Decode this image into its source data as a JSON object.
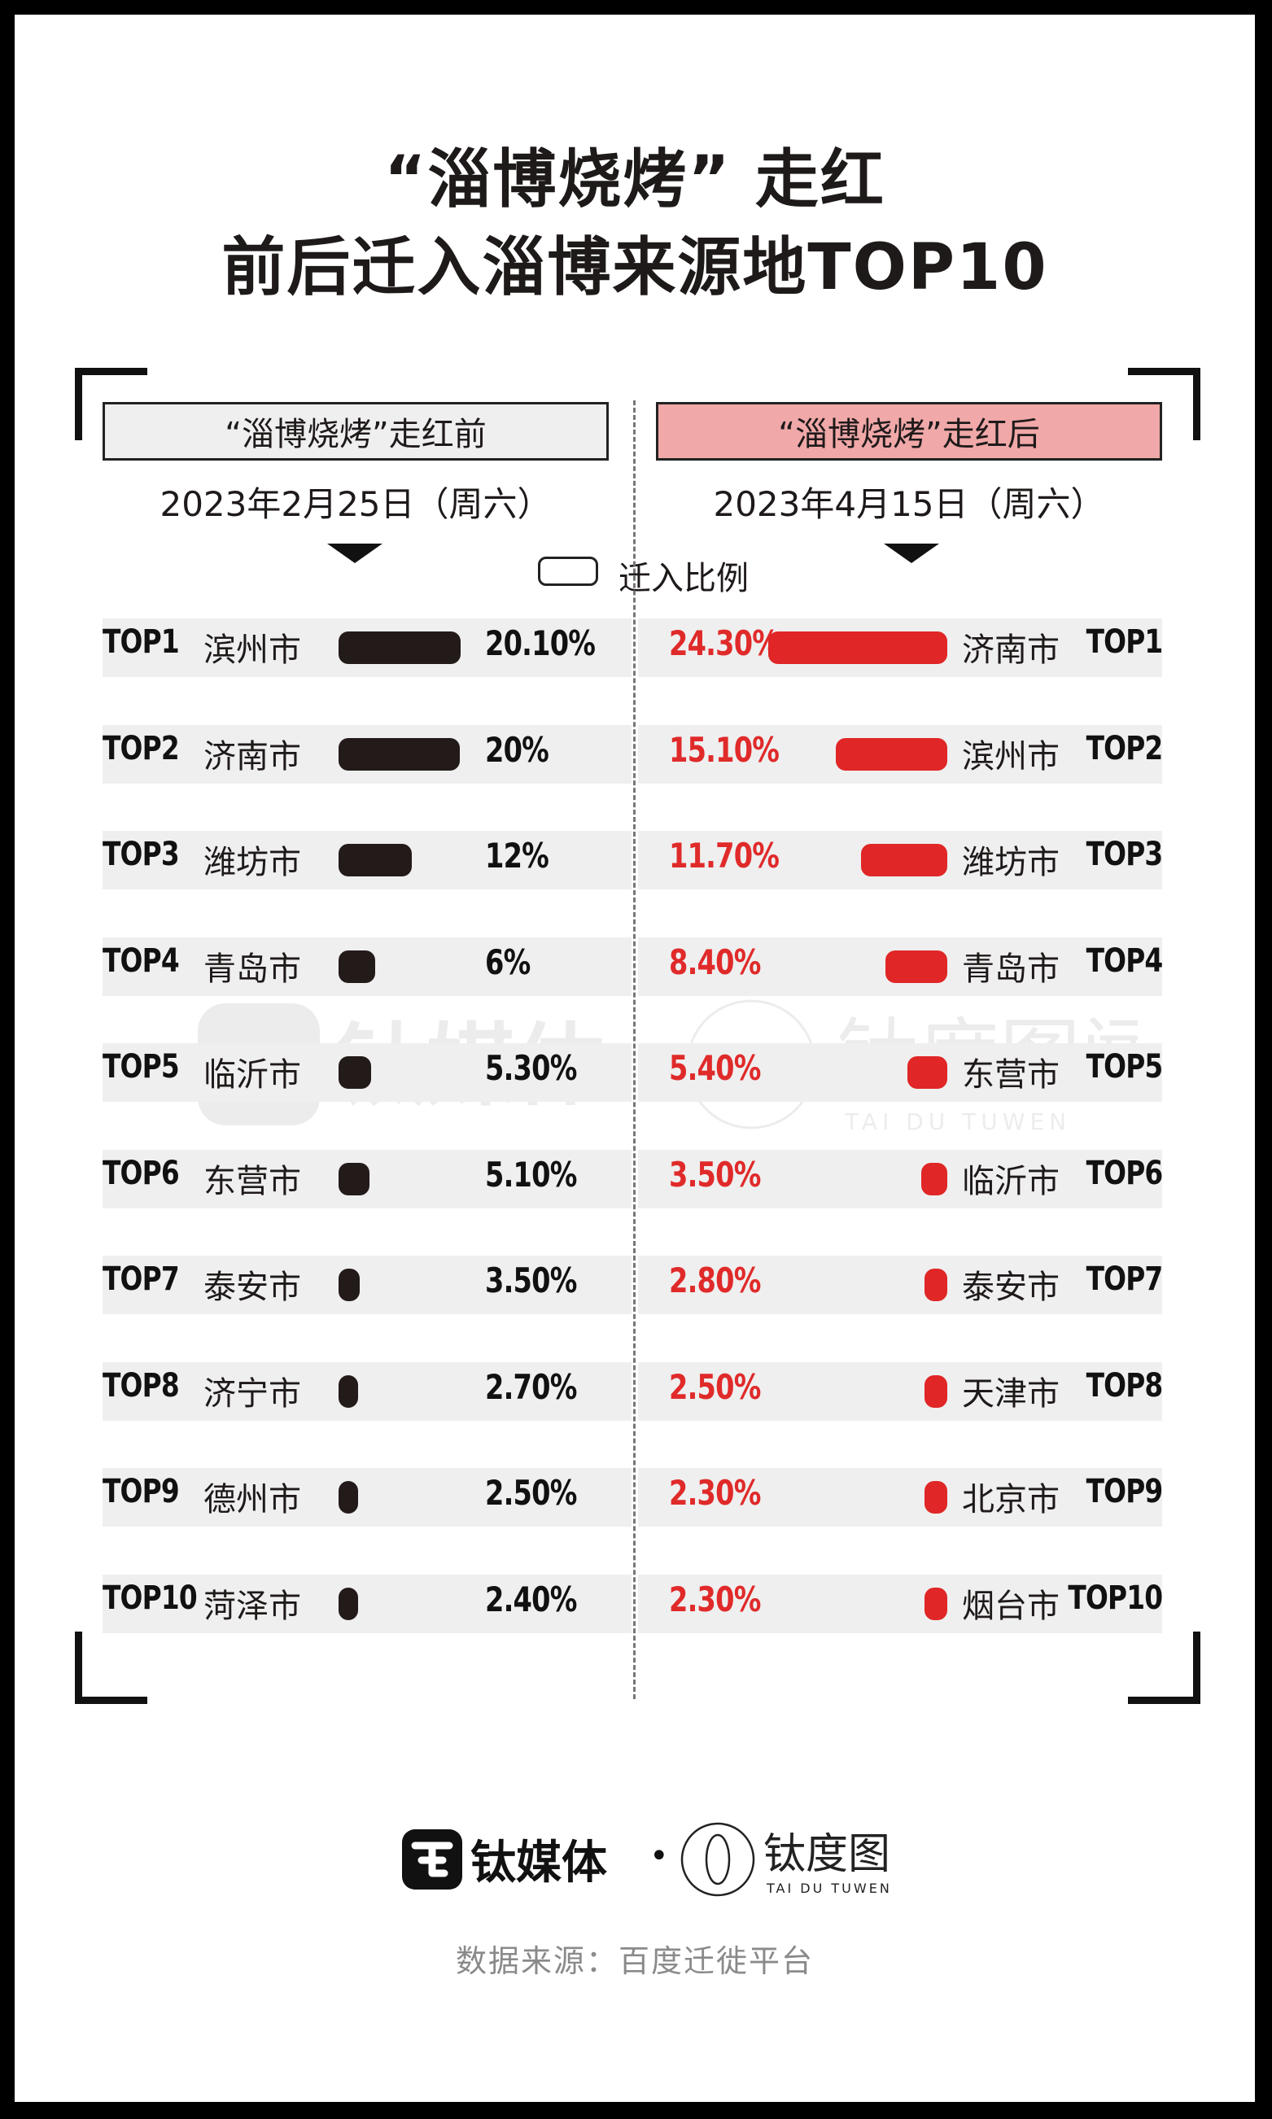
{
  "title": {
    "line1": "“淄博烧烤” 走红",
    "line2": "前后迁入淄博来源地TOP10"
  },
  "legend": {
    "label": "迁入比例"
  },
  "left_panel": {
    "heading": "“淄博烧烤”走红前",
    "date": "2023年2月25日（周六）"
  },
  "right_panel": {
    "heading": "“淄博烧烤”走红后",
    "date": "2023年4月15日（周六）"
  },
  "colors": {
    "before_bar": "#231a1a",
    "after_bar": "#e02626",
    "after_header": "#f0a8a8",
    "after_text": "#e02a2a"
  },
  "chart_data": [
    {
      "type": "bar",
      "title": "“淄博烧烤”走红前",
      "subtitle": "2023年2月25日（周六）",
      "categories": [
        "TOP1 滨州市",
        "TOP2 济南市",
        "TOP3 潍坊市",
        "TOP4 青岛市",
        "TOP5 临沂市",
        "TOP6 东营市",
        "TOP7 泰安市",
        "TOP8 济宁市",
        "TOP9 德州市",
        "TOP10 菏泽市"
      ],
      "ranks": [
        "TOP1",
        "TOP2",
        "TOP3",
        "TOP4",
        "TOP5",
        "TOP6",
        "TOP7",
        "TOP8",
        "TOP9",
        "TOP10"
      ],
      "cities": [
        "滨州市",
        "济南市",
        "潍坊市",
        "青岛市",
        "临沂市",
        "东营市",
        "泰安市",
        "济宁市",
        "德州市",
        "菏泽市"
      ],
      "values": [
        20.1,
        20,
        12,
        6,
        5.3,
        5.1,
        3.5,
        2.7,
        2.5,
        2.4
      ],
      "labels": [
        "20.10%",
        "20%",
        "12%",
        "6%",
        "5.30%",
        "5.10%",
        "3.50%",
        "2.70%",
        "2.50%",
        "2.40%"
      ],
      "ylabel": "迁入比例"
    },
    {
      "type": "bar",
      "title": "“淄博烧烤”走红后",
      "subtitle": "2023年4月15日（周六）",
      "categories": [
        "TOP1 济南市",
        "TOP2 滨州市",
        "TOP3 潍坊市",
        "TOP4 青岛市",
        "TOP5 东营市",
        "TOP6 临沂市",
        "TOP7 泰安市",
        "TOP8 天津市",
        "TOP9 北京市",
        "TOP10 烟台市"
      ],
      "ranks": [
        "TOP1",
        "TOP2",
        "TOP3",
        "TOP4",
        "TOP5",
        "TOP6",
        "TOP7",
        "TOP8",
        "TOP9",
        "TOP10"
      ],
      "cities": [
        "济南市",
        "滨州市",
        "潍坊市",
        "青岛市",
        "东营市",
        "临沂市",
        "泰安市",
        "天津市",
        "北京市",
        "烟台市"
      ],
      "values": [
        24.3,
        15.1,
        11.7,
        8.4,
        5.4,
        3.5,
        2.8,
        2.5,
        2.3,
        2.3
      ],
      "labels": [
        "24.30%",
        "15.10%",
        "11.70%",
        "8.40%",
        "5.40%",
        "3.50%",
        "2.80%",
        "2.50%",
        "2.30%",
        "2.30%"
      ],
      "ylabel": "迁入比例"
    }
  ],
  "brand": {
    "name1": "钛媒体",
    "name2": "钛度图闻",
    "name2_en": "TAI DU TUWEN",
    "separator": "•"
  },
  "source": "数据来源：百度迁徙平台"
}
